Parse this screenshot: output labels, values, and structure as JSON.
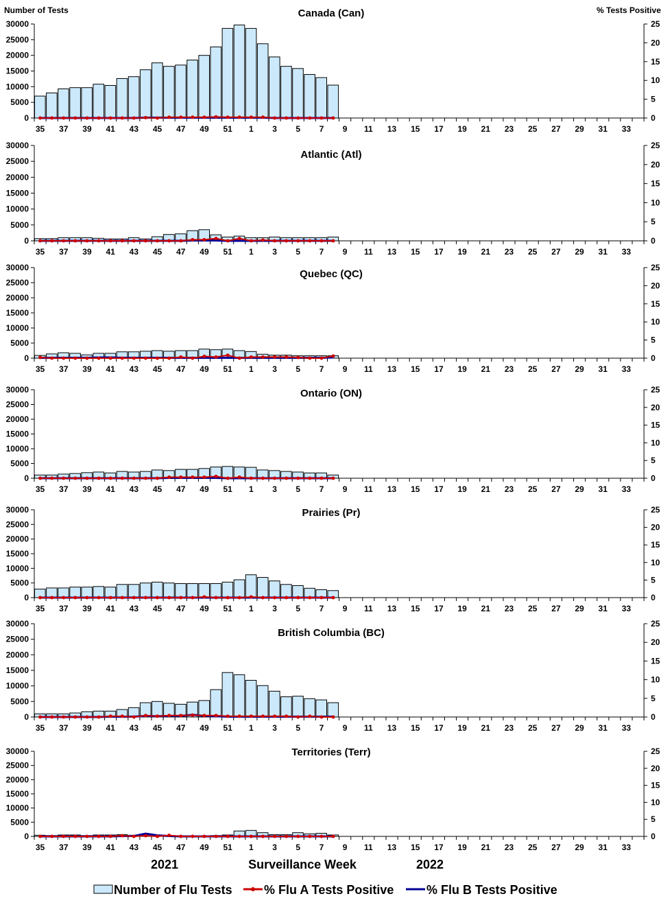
{
  "left_axis_label": "Number of Tests",
  "right_axis_label": "% Tests Positive",
  "xlabel": "Surveillance Week",
  "year_labels": [
    "2021",
    "2022"
  ],
  "legend": {
    "tests": "Number of Flu Tests",
    "flu_a": "% Flu A Tests Positive",
    "flu_b": "% Flu B Tests Positive"
  },
  "colors": {
    "bar_fill": "#cce9fb",
    "bar_stroke": "#000000",
    "flu_a": "#cc0000",
    "flu_b": "#000099"
  },
  "x_tick_labels": [
    "35",
    "37",
    "39",
    "41",
    "43",
    "45",
    "47",
    "49",
    "51",
    "1",
    "3",
    "5",
    "7",
    "9",
    "11",
    "13",
    "15",
    "17",
    "19",
    "21",
    "23",
    "25",
    "27",
    "29",
    "31",
    "33"
  ],
  "y_left_ticks": [
    "0",
    "5000",
    "10000",
    "15000",
    "20000",
    "25000",
    "30000"
  ],
  "y_right_ticks": [
    "0",
    "5",
    "10",
    "15",
    "20",
    "25"
  ],
  "chart_data": [
    {
      "type": "bar+line",
      "title": "Canada (Can)",
      "ylim": [
        0,
        30000
      ],
      "y2lim": [
        0,
        25
      ],
      "weeks": [
        35,
        36,
        37,
        38,
        39,
        40,
        41,
        42,
        43,
        44,
        45,
        46,
        47,
        48,
        49,
        50,
        51,
        52,
        1,
        2,
        3,
        4,
        5,
        6,
        7,
        8
      ],
      "tests": [
        7000,
        8000,
        9300,
        9700,
        9700,
        10800,
        10400,
        12600,
        13200,
        15400,
        17600,
        16500,
        16900,
        18500,
        20000,
        22700,
        28600,
        29700,
        28600,
        23700,
        19500,
        16500,
        15800,
        13900,
        12900,
        10500
      ],
      "flu_a": [
        0,
        0,
        0,
        0,
        0,
        0,
        0,
        0,
        0,
        0.1,
        0,
        0.2,
        0.2,
        0.2,
        0.2,
        0.3,
        0.2,
        0.2,
        0.2,
        0.2,
        0,
        0,
        0,
        0,
        0,
        0
      ],
      "flu_b": [
        0,
        0,
        0,
        0,
        0,
        0,
        0,
        0,
        0,
        0.1,
        0.1,
        0.1,
        0.1,
        0.1,
        0.1,
        0.1,
        0.1,
        0.1,
        0.1,
        0.1,
        0,
        0,
        0,
        0,
        0,
        0
      ]
    },
    {
      "type": "bar+line",
      "title": "Atlantic (Atl)",
      "ylim": [
        0,
        30000
      ],
      "y2lim": [
        0,
        25
      ],
      "weeks": [
        35,
        36,
        37,
        38,
        39,
        40,
        41,
        42,
        43,
        44,
        45,
        46,
        47,
        48,
        49,
        50,
        51,
        52,
        1,
        2,
        3,
        4,
        5,
        6,
        7,
        8
      ],
      "tests": [
        700,
        700,
        1000,
        1000,
        1000,
        800,
        600,
        600,
        1000,
        600,
        1300,
        2000,
        2200,
        3200,
        3500,
        1900,
        1200,
        1500,
        1000,
        1000,
        1200,
        1000,
        1000,
        1000,
        1000,
        1200
      ],
      "flu_a": [
        0,
        0,
        0,
        0,
        0,
        0,
        0,
        0,
        0,
        0,
        0,
        0,
        0,
        0.3,
        0.3,
        0.6,
        0,
        0.6,
        0,
        0.2,
        0,
        0,
        0,
        0,
        0,
        0
      ],
      "flu_b": [
        0,
        0,
        0,
        0,
        0,
        0,
        0,
        0,
        0,
        0,
        0,
        0,
        0,
        0.1,
        0.1,
        0.1,
        0,
        0,
        0,
        0,
        0,
        0,
        0,
        0,
        0,
        0
      ]
    },
    {
      "type": "bar+line",
      "title": "Quebec (QC)",
      "ylim": [
        0,
        30000
      ],
      "y2lim": [
        0,
        25
      ],
      "weeks": [
        35,
        36,
        37,
        38,
        39,
        40,
        41,
        42,
        43,
        44,
        45,
        46,
        47,
        48,
        49,
        50,
        51,
        52,
        1,
        2,
        3,
        4,
        5,
        6,
        7,
        8
      ],
      "tests": [
        900,
        1400,
        1800,
        1600,
        1100,
        1600,
        1600,
        2100,
        2100,
        2300,
        2500,
        2300,
        2500,
        2500,
        3000,
        2800,
        3000,
        2500,
        2200,
        1300,
        1000,
        1000,
        800,
        800,
        800,
        800
      ],
      "flu_a": [
        0.2,
        0,
        0,
        0,
        0,
        0,
        0,
        0,
        0,
        0,
        0,
        0,
        0.3,
        0,
        0.5,
        0.3,
        0.8,
        0,
        0.3,
        0.3,
        0.3,
        0.3,
        0.2,
        0,
        0,
        0.6
      ],
      "flu_b": [
        0.1,
        0.1,
        0.1,
        0.1,
        0.1,
        0.2,
        0.2,
        0.1,
        0.1,
        0.1,
        0.1,
        0.1,
        0.1,
        0.1,
        0.1,
        0.1,
        0.1,
        0.1,
        0.1,
        0.1,
        0.1,
        0.1,
        0.1,
        0.1,
        0.1,
        0.2
      ]
    },
    {
      "type": "bar+line",
      "title": "Ontario (ON)",
      "ylim": [
        0,
        30000
      ],
      "y2lim": [
        0,
        25
      ],
      "weeks": [
        35,
        36,
        37,
        38,
        39,
        40,
        41,
        42,
        43,
        44,
        45,
        46,
        47,
        48,
        49,
        50,
        51,
        52,
        1,
        2,
        3,
        4,
        5,
        6,
        7,
        8
      ],
      "tests": [
        1100,
        1100,
        1400,
        1600,
        1900,
        2100,
        1800,
        2300,
        2100,
        2300,
        2800,
        2600,
        3000,
        3000,
        3300,
        3800,
        4000,
        3800,
        3700,
        2800,
        2600,
        2300,
        2100,
        1800,
        1800,
        1100
      ],
      "flu_a": [
        0,
        0,
        0,
        0,
        0,
        0,
        0,
        0,
        0,
        0,
        0,
        0.3,
        0.3,
        0.3,
        0.3,
        0.5,
        0,
        0.3,
        0,
        0,
        0,
        0,
        0,
        0,
        0,
        0
      ],
      "flu_b": [
        0,
        0,
        0,
        0,
        0,
        0,
        0,
        0,
        0,
        0,
        0,
        0.1,
        0.1,
        0.1,
        0.1,
        0.1,
        0,
        0,
        0,
        0,
        0,
        0,
        0,
        0,
        0,
        0
      ]
    },
    {
      "type": "bar+line",
      "title": "Prairies (Pr)",
      "ylim": [
        0,
        30000
      ],
      "y2lim": [
        0,
        25
      ],
      "weeks": [
        35,
        36,
        37,
        38,
        39,
        40,
        41,
        42,
        43,
        44,
        45,
        46,
        47,
        48,
        49,
        50,
        51,
        52,
        1,
        2,
        3,
        4,
        5,
        6,
        7,
        8
      ],
      "tests": [
        2900,
        3300,
        3300,
        3600,
        3600,
        3800,
        3600,
        4500,
        4500,
        5000,
        5300,
        5000,
        4800,
        4800,
        4800,
        4800,
        5300,
        6100,
        7800,
        6900,
        5700,
        4500,
        4100,
        3200,
        2700,
        2400
      ],
      "flu_a": [
        0,
        0,
        0,
        0,
        0,
        0,
        0,
        0,
        0,
        0,
        0,
        0,
        0,
        0,
        0.2,
        0,
        0,
        0,
        0.2,
        0,
        0,
        0,
        0,
        0,
        0,
        0
      ],
      "flu_b": [
        0,
        0,
        0,
        0,
        0,
        0,
        0,
        0,
        0,
        0,
        0,
        0,
        0,
        0,
        0,
        0,
        0,
        0,
        0,
        0,
        0,
        0,
        0,
        0,
        0,
        0
      ]
    },
    {
      "type": "bar+line",
      "title": "British Columbia (BC)",
      "ylim": [
        0,
        30000
      ],
      "y2lim": [
        0,
        25
      ],
      "weeks": [
        35,
        36,
        37,
        38,
        39,
        40,
        41,
        42,
        43,
        44,
        45,
        46,
        47,
        48,
        49,
        50,
        51,
        52,
        1,
        2,
        3,
        4,
        5,
        6,
        7,
        8
      ],
      "tests": [
        1000,
        1000,
        1000,
        1300,
        1700,
        1900,
        1900,
        2400,
        3000,
        4600,
        5000,
        4400,
        4100,
        4800,
        5300,
        8800,
        14300,
        13600,
        11800,
        10100,
        8300,
        6500,
        6700,
        5900,
        5500,
        4600
      ],
      "flu_a": [
        0,
        0,
        0,
        0,
        0,
        0,
        0.2,
        0.2,
        0,
        0.4,
        0.2,
        0.4,
        0.4,
        0.5,
        0.4,
        0.4,
        0.2,
        0.2,
        0.2,
        0.2,
        0.2,
        0.2,
        0,
        0.2,
        0,
        0
      ],
      "flu_b": [
        0,
        0,
        0,
        0,
        0,
        0,
        0.1,
        0.1,
        0.1,
        0.3,
        0.2,
        0.3,
        0.3,
        0.6,
        0.3,
        0.2,
        0.1,
        0.1,
        0.1,
        0.1,
        0.1,
        0.1,
        0.1,
        0.1,
        0.1,
        0.1
      ]
    },
    {
      "type": "bar+line",
      "title": "Territories (Terr)",
      "ylim": [
        0,
        30000
      ],
      "y2lim": [
        0,
        25
      ],
      "weeks": [
        35,
        36,
        37,
        38,
        39,
        40,
        41,
        42,
        43,
        44,
        45,
        46,
        47,
        48,
        49,
        50,
        51,
        52,
        1,
        2,
        3,
        4,
        5,
        6,
        7,
        8
      ],
      "tests": [
        400,
        300,
        500,
        500,
        300,
        500,
        500,
        600,
        400,
        800,
        400,
        300,
        200,
        200,
        200,
        300,
        500,
        1900,
        2100,
        1300,
        600,
        600,
        1300,
        900,
        1100,
        500
      ],
      "flu_a": [
        0,
        0,
        0,
        0,
        0,
        0,
        0,
        0.2,
        0,
        0.2,
        0,
        0.3,
        0,
        0,
        0,
        0,
        0,
        0,
        0,
        0,
        0,
        0,
        0,
        0,
        0,
        0
      ],
      "flu_b": [
        0,
        0,
        0,
        0,
        0,
        0,
        0,
        0.1,
        0.1,
        0.8,
        0.3,
        0.1,
        0,
        0,
        0,
        0,
        0,
        0,
        0,
        0,
        0,
        0,
        0,
        0,
        0,
        0
      ]
    }
  ]
}
